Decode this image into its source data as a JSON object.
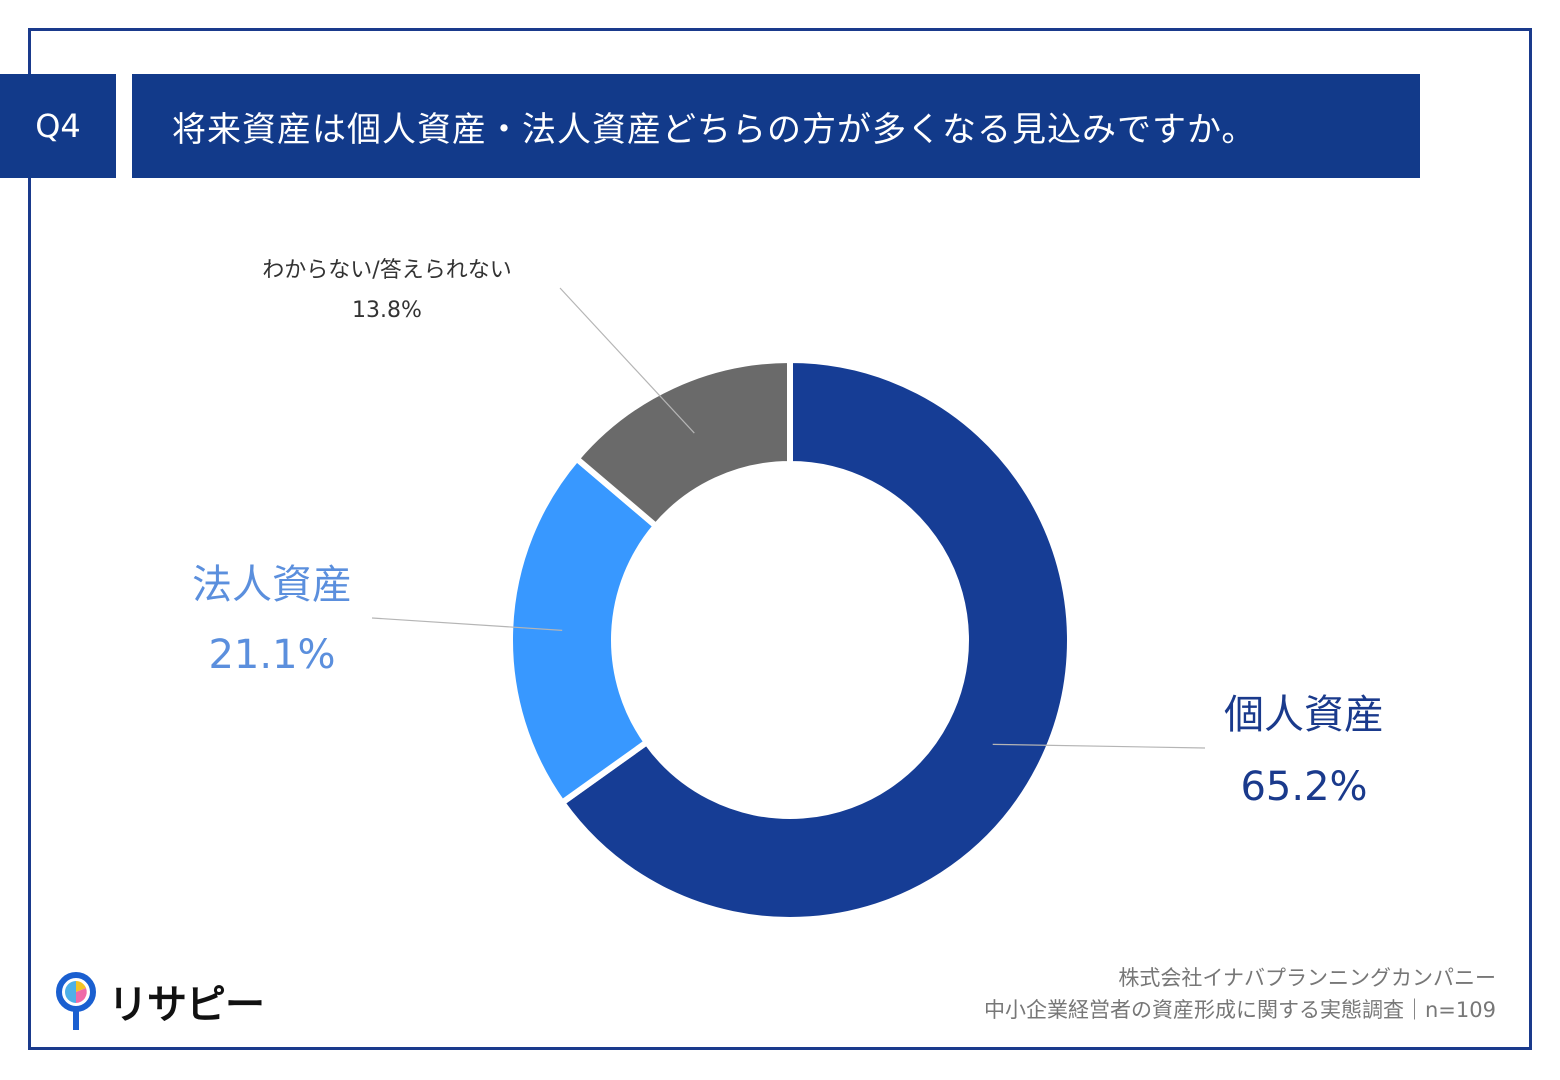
{
  "header": {
    "question_no": "Q4",
    "question": "将来資産は個人資産・法人資産どちらの方が多くなる見込みですか。"
  },
  "chart_data": {
    "type": "pie",
    "donut": true,
    "categories": [
      "個人資産",
      "法人資産",
      "わからない/答えられない"
    ],
    "values": [
      65.2,
      21.1,
      13.8
    ],
    "labels": [
      {
        "name": "個人資産",
        "value": "65.2%"
      },
      {
        "name": "法人資産",
        "value": "21.1%"
      },
      {
        "name": "わからない/答えられない",
        "value": "13.8%"
      }
    ],
    "colors": [
      "#163d95",
      "#3898ff",
      "#6a6a6a"
    ]
  },
  "logo": {
    "icon": "pin-icon",
    "text": "リサピー"
  },
  "source": {
    "line1": "株式会社イナバプランニングカンパニー",
    "line2": "中小企業経営者の資産形成に関する実態調査｜n=109"
  }
}
